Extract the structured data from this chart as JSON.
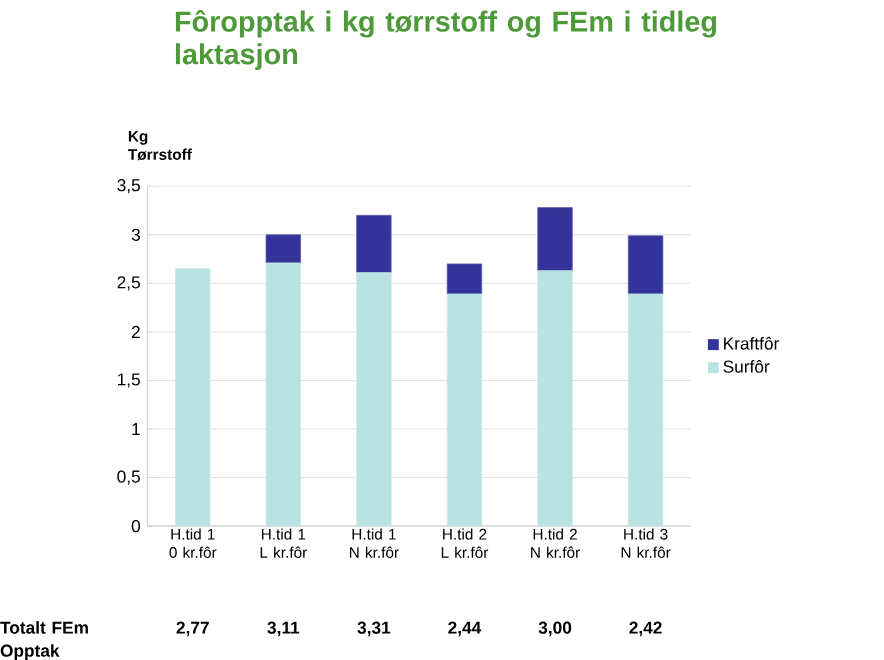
{
  "chart_data": {
    "type": "bar",
    "stacked": true,
    "title": "Fôropptak i kg tørrstoff og FEm i tidleg laktasjon",
    "ylabel": "Kg Tørrstoff",
    "categories": [
      "H.tid 1 0 kr.fôr",
      "H.tid 1 L kr.fôr",
      "H.tid 1 N kr.fôr",
      "H.tid 2 L kr.fôr",
      "H.tid 2 N kr.fôr",
      "H.tid 3 N kr.fôr"
    ],
    "series": [
      {
        "name": "Surfôr",
        "color": "#b9e3e3",
        "values": [
          2.65,
          2.71,
          2.61,
          2.39,
          2.63,
          2.39
        ]
      },
      {
        "name": "Kraftfôr",
        "color": "#333399",
        "values": [
          0,
          0.29,
          0.59,
          0.31,
          0.65,
          0.6
        ]
      }
    ],
    "ylim": [
      0,
      3.5
    ],
    "yticks": [
      0,
      {
        "value": 0.5,
        "label": "0,5"
      },
      1,
      {
        "value": 1.5,
        "label": "1,5"
      },
      2,
      {
        "value": 2.5,
        "label": "2,5"
      },
      3,
      {
        "value": 3.5,
        "label": "3,5"
      }
    ],
    "grid": "y",
    "legend": "right",
    "annotations": [
      "Totalt FEm Opptak",
      "2,77",
      "3,11",
      "3,31",
      "2,44",
      "3,00",
      "2,42"
    ]
  }
}
